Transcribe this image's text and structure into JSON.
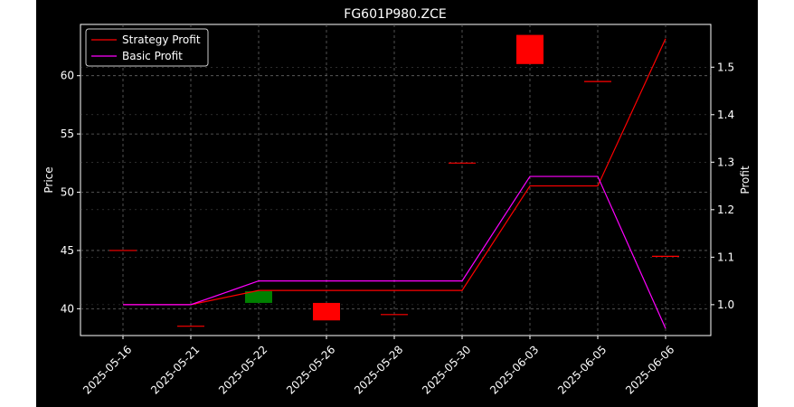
{
  "chart_data": {
    "type": "candlestick+line",
    "title": "FG601P980.ZCE",
    "ylabel_left": "Price",
    "ylabel_right": "Profit",
    "xlabel": "",
    "categories": [
      "2025-05-16",
      "2025-05-21",
      "2025-05-22",
      "2025-05-26",
      "2025-05-28",
      "2025-05-30",
      "2025-06-03",
      "2025-06-05",
      "2025-06-06"
    ],
    "ylim_left": [
      37.7,
      64.4
    ],
    "yticks_left": [
      40,
      45,
      50,
      55,
      60
    ],
    "ylim_right": [
      0.935,
      1.59
    ],
    "yticks_right": [
      1.0,
      1.1,
      1.2,
      1.3,
      1.4,
      1.5
    ],
    "grid": true,
    "legend_position": "top-left",
    "background": "#000000",
    "colors": {
      "up": "#008000",
      "down": "#ff0000",
      "strategy": "#ff0000",
      "basic": "#ff00ff",
      "grid": "#666666",
      "axis": "#ffffff"
    },
    "candles": [
      {
        "date": "2025-05-16",
        "open": 45.0,
        "close": 45.0
      },
      {
        "date": "2025-05-21",
        "open": 38.5,
        "close": 38.5
      },
      {
        "date": "2025-05-22",
        "open": 40.5,
        "close": 41.5
      },
      {
        "date": "2025-05-26",
        "open": 40.5,
        "close": 39.0
      },
      {
        "date": "2025-05-28",
        "open": 39.5,
        "close": 39.5
      },
      {
        "date": "2025-05-30",
        "open": 52.5,
        "close": 52.5
      },
      {
        "date": "2025-06-03",
        "open": 63.5,
        "close": 61.0
      },
      {
        "date": "2025-06-05",
        "open": 59.5,
        "close": 59.5
      },
      {
        "date": "2025-06-06",
        "open": 44.5,
        "close": 44.5
      }
    ],
    "series": [
      {
        "name": "Strategy Profit",
        "axis": "right",
        "values": [
          1.0,
          1.0,
          1.03,
          1.03,
          1.03,
          1.03,
          1.25,
          1.25,
          1.56
        ]
      },
      {
        "name": "Basic Profit",
        "axis": "right",
        "values": [
          1.0,
          1.0,
          1.05,
          1.05,
          1.05,
          1.05,
          1.27,
          1.27,
          0.95
        ]
      }
    ]
  }
}
